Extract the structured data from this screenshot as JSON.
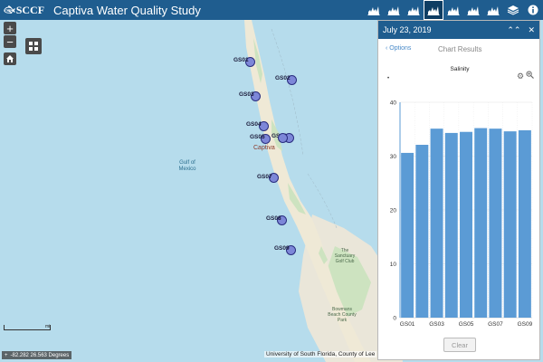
{
  "header": {
    "logo_text": "SCCF",
    "title": "Captiva Water Quality Study",
    "toolbar_icons": [
      "chart-icon",
      "chart-icon",
      "chart-icon",
      "chart-icon",
      "chart-icon",
      "chart-icon",
      "chart-icon",
      "layers-icon",
      "info-icon"
    ],
    "active_index": 3
  },
  "map": {
    "water_label": "Gulf of\nMexico",
    "place_label": "Captiva",
    "poi_label": "The\nSanctuary\nGolf Club",
    "poi_label_2": "Bowmans\nBeach County\nPark",
    "sites": [
      {
        "label": "GS01"
      },
      {
        "label": "GS02"
      },
      {
        "label": "GS03"
      },
      {
        "label": "GS04"
      },
      {
        "label": "GS05"
      },
      {
        "label": "GS06"
      },
      {
        "label": "GS07"
      },
      {
        "label": "GS08"
      },
      {
        "label": "GS09"
      },
      {
        "label": "GS10"
      }
    ],
    "scale_label": "mi",
    "coordinates": "-82.282 26.563 Degrees",
    "attribution": "University of South Florida, County of Lee"
  },
  "controls": {
    "zoom_in": "+",
    "zoom_out": "−"
  },
  "panel": {
    "date": "July 23, 2019",
    "collapse_label": "⌃⌃",
    "close_label": "✕",
    "options_label": "Options",
    "results_title": "Chart Results",
    "clear_label": "Clear"
  },
  "chart_data": {
    "type": "bar",
    "title": "Salinity",
    "categories": [
      "GS01",
      "GS02",
      "GS03",
      "GS04",
      "GS05",
      "GS06",
      "GS07",
      "GS08",
      "GS09"
    ],
    "values": [
      30.6,
      32.1,
      35.1,
      34.3,
      34.5,
      35.2,
      35.1,
      34.6,
      34.8
    ],
    "tick_labels_x": [
      "GS01",
      "GS03",
      "GS05",
      "GS07",
      "GS09"
    ],
    "ylim": [
      0,
      40
    ],
    "yticks": [
      0,
      10,
      20,
      30,
      40
    ],
    "grid": true,
    "bar_color": "#5b9bd5"
  }
}
